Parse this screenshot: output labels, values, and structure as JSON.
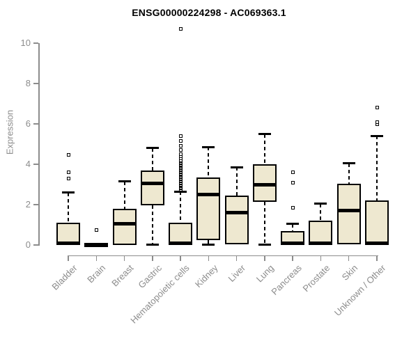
{
  "title": "ENSG00000224298 - AC069363.1",
  "chart_data": {
    "type": "boxplot",
    "title": "ENSG00000224298 - AC069363.1",
    "xlabel": "",
    "ylabel": "Expression",
    "ylim": [
      0,
      10
    ],
    "yticks": [
      0,
      2,
      4,
      6,
      8,
      10
    ],
    "grid": false,
    "legend": "none",
    "categories": [
      "Bladder",
      "Brain",
      "Breast",
      "Gastric",
      "Hematopoietic cells",
      "Kidney",
      "Liver",
      "Lung",
      "Pancreas",
      "Prostate",
      "Skin",
      "Unknown / Other"
    ],
    "series": [
      {
        "name": "Bladder",
        "q1": 0,
        "median": 0.07,
        "q3": 1.1,
        "whisker_low": 0,
        "whisker_high": 2.6,
        "outliers": [
          3.3,
          3.6,
          4.45
        ]
      },
      {
        "name": "Brain",
        "q1": 0,
        "median": 0.02,
        "q3": 0.05,
        "whisker_low": 0,
        "whisker_high": 0.05,
        "outliers": [
          0.73
        ]
      },
      {
        "name": "Breast",
        "q1": 0,
        "median": 1.05,
        "q3": 1.8,
        "whisker_low": 0,
        "whisker_high": 3.15,
        "outliers": []
      },
      {
        "name": "Gastric",
        "q1": 1.95,
        "median": 3.05,
        "q3": 3.7,
        "whisker_low": 0.02,
        "whisker_high": 4.8,
        "outliers": []
      },
      {
        "name": "Hematopoietic cells",
        "q1": 0,
        "median": 0.07,
        "q3": 1.1,
        "whisker_low": 0,
        "whisker_high": 2.65,
        "outliers": [
          2.75,
          2.8,
          2.85,
          2.9,
          2.95,
          3.0,
          3.05,
          3.1,
          3.15,
          3.2,
          3.25,
          3.3,
          3.35,
          3.4,
          3.45,
          3.5,
          3.55,
          3.6,
          3.65,
          3.7,
          3.75,
          3.8,
          3.85,
          3.9,
          3.95,
          4.0,
          4.05,
          4.1,
          4.15,
          4.2,
          4.3,
          4.4,
          4.5,
          4.72,
          4.92,
          5.15,
          5.38,
          10.7
        ]
      },
      {
        "name": "Kidney",
        "q1": 0.25,
        "median": 2.5,
        "q3": 3.35,
        "whisker_low": 0.02,
        "whisker_high": 4.85,
        "outliers": []
      },
      {
        "name": "Liver",
        "q1": 0.05,
        "median": 1.6,
        "q3": 2.45,
        "whisker_low": 0.05,
        "whisker_high": 3.85,
        "outliers": []
      },
      {
        "name": "Lung",
        "q1": 2.15,
        "median": 3.0,
        "q3": 4.0,
        "whisker_low": 0.02,
        "whisker_high": 5.5,
        "outliers": []
      },
      {
        "name": "Pancreas",
        "q1": 0,
        "median": 0.07,
        "q3": 0.7,
        "whisker_low": 0,
        "whisker_high": 1.05,
        "outliers": [
          1.85,
          3.1,
          3.6
        ]
      },
      {
        "name": "Prostate",
        "q1": 0,
        "median": 0.07,
        "q3": 1.2,
        "whisker_low": 0,
        "whisker_high": 2.05,
        "outliers": []
      },
      {
        "name": "Skin",
        "q1": 0.03,
        "median": 1.72,
        "q3": 3.05,
        "whisker_low": 0.03,
        "whisker_high": 4.05,
        "outliers": []
      },
      {
        "name": "Unknown / Other",
        "q1": 0,
        "median": 0.07,
        "q3": 2.2,
        "whisker_low": 0,
        "whisker_high": 5.4,
        "outliers": [
          6.0,
          6.1,
          6.8
        ]
      }
    ],
    "colors": {
      "box_fill": "#EEE8D0",
      "box_border": "#000000",
      "median": "#000000",
      "whisker": "#000000",
      "outlier": "#000000",
      "axis": "#8C8C8C",
      "title": "#000000",
      "background": "#FFFFFF"
    }
  }
}
